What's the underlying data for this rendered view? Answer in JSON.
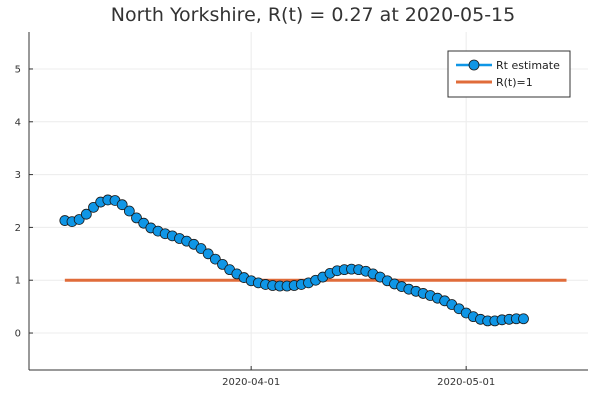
{
  "chart_data": {
    "type": "line",
    "title": "North Yorkshire, R(t) = 0.27 at 2020-05-15",
    "xlabel": "",
    "ylabel": "",
    "x_ticks": [
      "2020-04-01",
      "2020-05-01"
    ],
    "y_ticks": [
      0,
      1,
      2,
      3,
      4,
      5
    ],
    "ylim": [
      -0.7,
      5.7
    ],
    "xlim": [
      "2020-03-01",
      "2020-05-18"
    ],
    "grid": true,
    "legend": "top-right",
    "series": [
      {
        "name": "Rt estimate",
        "color": "#0f96e6",
        "marker": "circle",
        "x_start": "2020-03-06",
        "x_step_days": 1,
        "values": [
          2.13,
          2.11,
          2.15,
          2.25,
          2.38,
          2.48,
          2.52,
          2.51,
          2.43,
          2.31,
          2.18,
          2.08,
          1.99,
          1.93,
          1.88,
          1.84,
          1.79,
          1.74,
          1.68,
          1.6,
          1.5,
          1.4,
          1.3,
          1.2,
          1.12,
          1.05,
          0.99,
          0.95,
          0.92,
          0.9,
          0.89,
          0.89,
          0.9,
          0.92,
          0.95,
          1.0,
          1.06,
          1.13,
          1.18,
          1.2,
          1.21,
          1.2,
          1.17,
          1.12,
          1.06,
          0.99,
          0.93,
          0.88,
          0.83,
          0.79,
          0.75,
          0.71,
          0.66,
          0.61,
          0.54,
          0.46,
          0.38,
          0.31,
          0.26,
          0.23,
          0.23,
          0.25,
          0.26,
          0.27,
          0.27
        ]
      },
      {
        "name": "R(t)=1",
        "color": "#e06c3a",
        "marker": "none",
        "x": [
          "2020-03-06",
          "2020-05-15"
        ],
        "values": [
          1,
          1
        ]
      }
    ]
  }
}
